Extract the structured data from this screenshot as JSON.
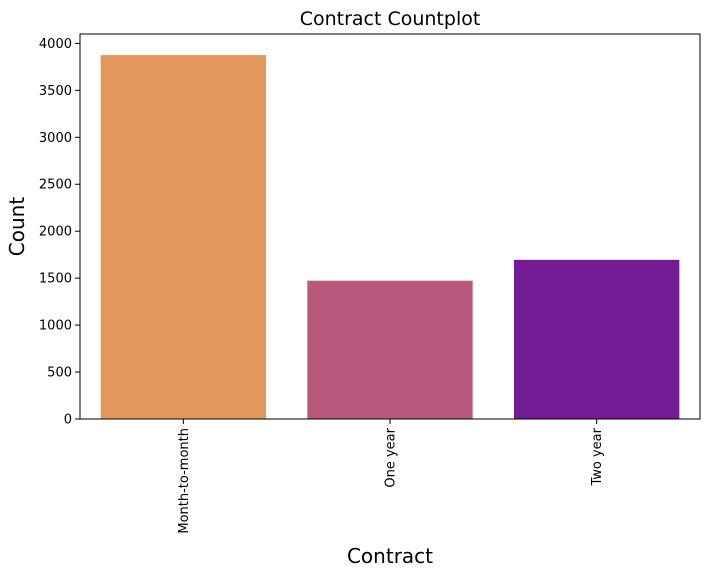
{
  "chart_data": {
    "type": "bar",
    "title": "Contract Countplot",
    "xlabel": "Contract",
    "ylabel": "Count",
    "categories": [
      "Month-to-month",
      "One year",
      "Two year"
    ],
    "values": [
      3875,
      1473,
      1695
    ],
    "colors": [
      "#e3975a",
      "#b8587c",
      "#731a95"
    ],
    "ylim": [
      0,
      4100
    ],
    "yticks": [
      0,
      500,
      1000,
      1500,
      2000,
      2500,
      3000,
      3500,
      4000
    ],
    "ytick_labels": [
      "0",
      "500",
      "1000",
      "1500",
      "2000",
      "2500",
      "3000",
      "3500",
      "4000"
    ],
    "grid": false,
    "legend": "none",
    "xtick_rotation": "vertical"
  }
}
